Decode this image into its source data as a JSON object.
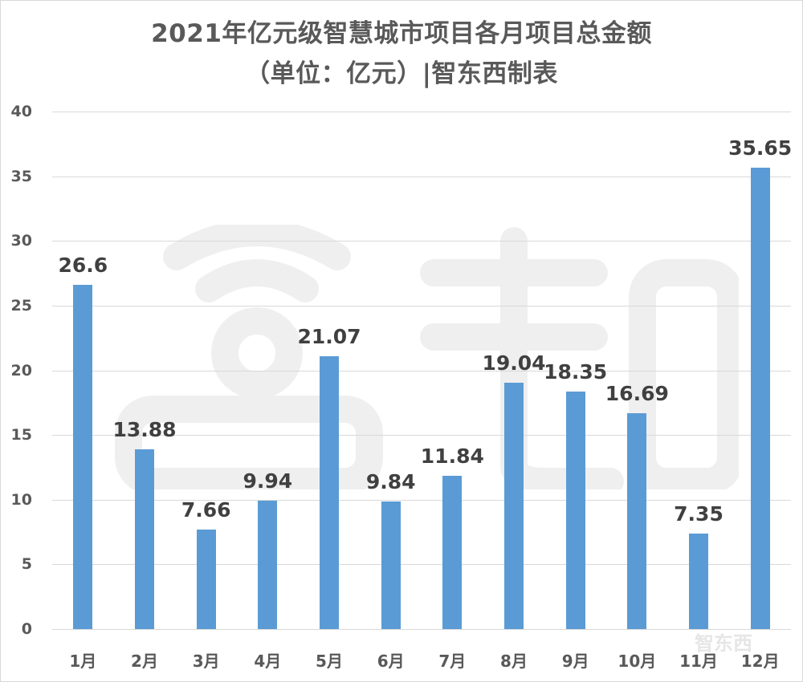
{
  "chart_data": {
    "type": "bar",
    "title": "2021年亿元级智慧城市项目各月项目总金额",
    "subtitle": "（单位：亿元）|智东西制表",
    "xlabel": "",
    "ylabel": "",
    "categories": [
      "1月",
      "2月",
      "3月",
      "4月",
      "5月",
      "6月",
      "7月",
      "8月",
      "9月",
      "10月",
      "11月",
      "12月"
    ],
    "values": [
      26.6,
      13.88,
      7.66,
      9.94,
      21.07,
      9.84,
      11.84,
      19.04,
      18.35,
      16.69,
      7.35,
      35.65
    ],
    "value_labels": [
      "26.6",
      "13.88",
      "7.66",
      "9.94",
      "21.07",
      "9.84",
      "11.84",
      "19.04",
      "18.35",
      "16.69",
      "7.35",
      "35.65"
    ],
    "ylim": [
      0,
      40
    ],
    "yticks": [
      0,
      5,
      10,
      15,
      20,
      25,
      30,
      35,
      40
    ],
    "grid": true,
    "legend": "none",
    "bar_color": "#5b9bd5"
  },
  "watermark": {
    "text": "智东西"
  }
}
